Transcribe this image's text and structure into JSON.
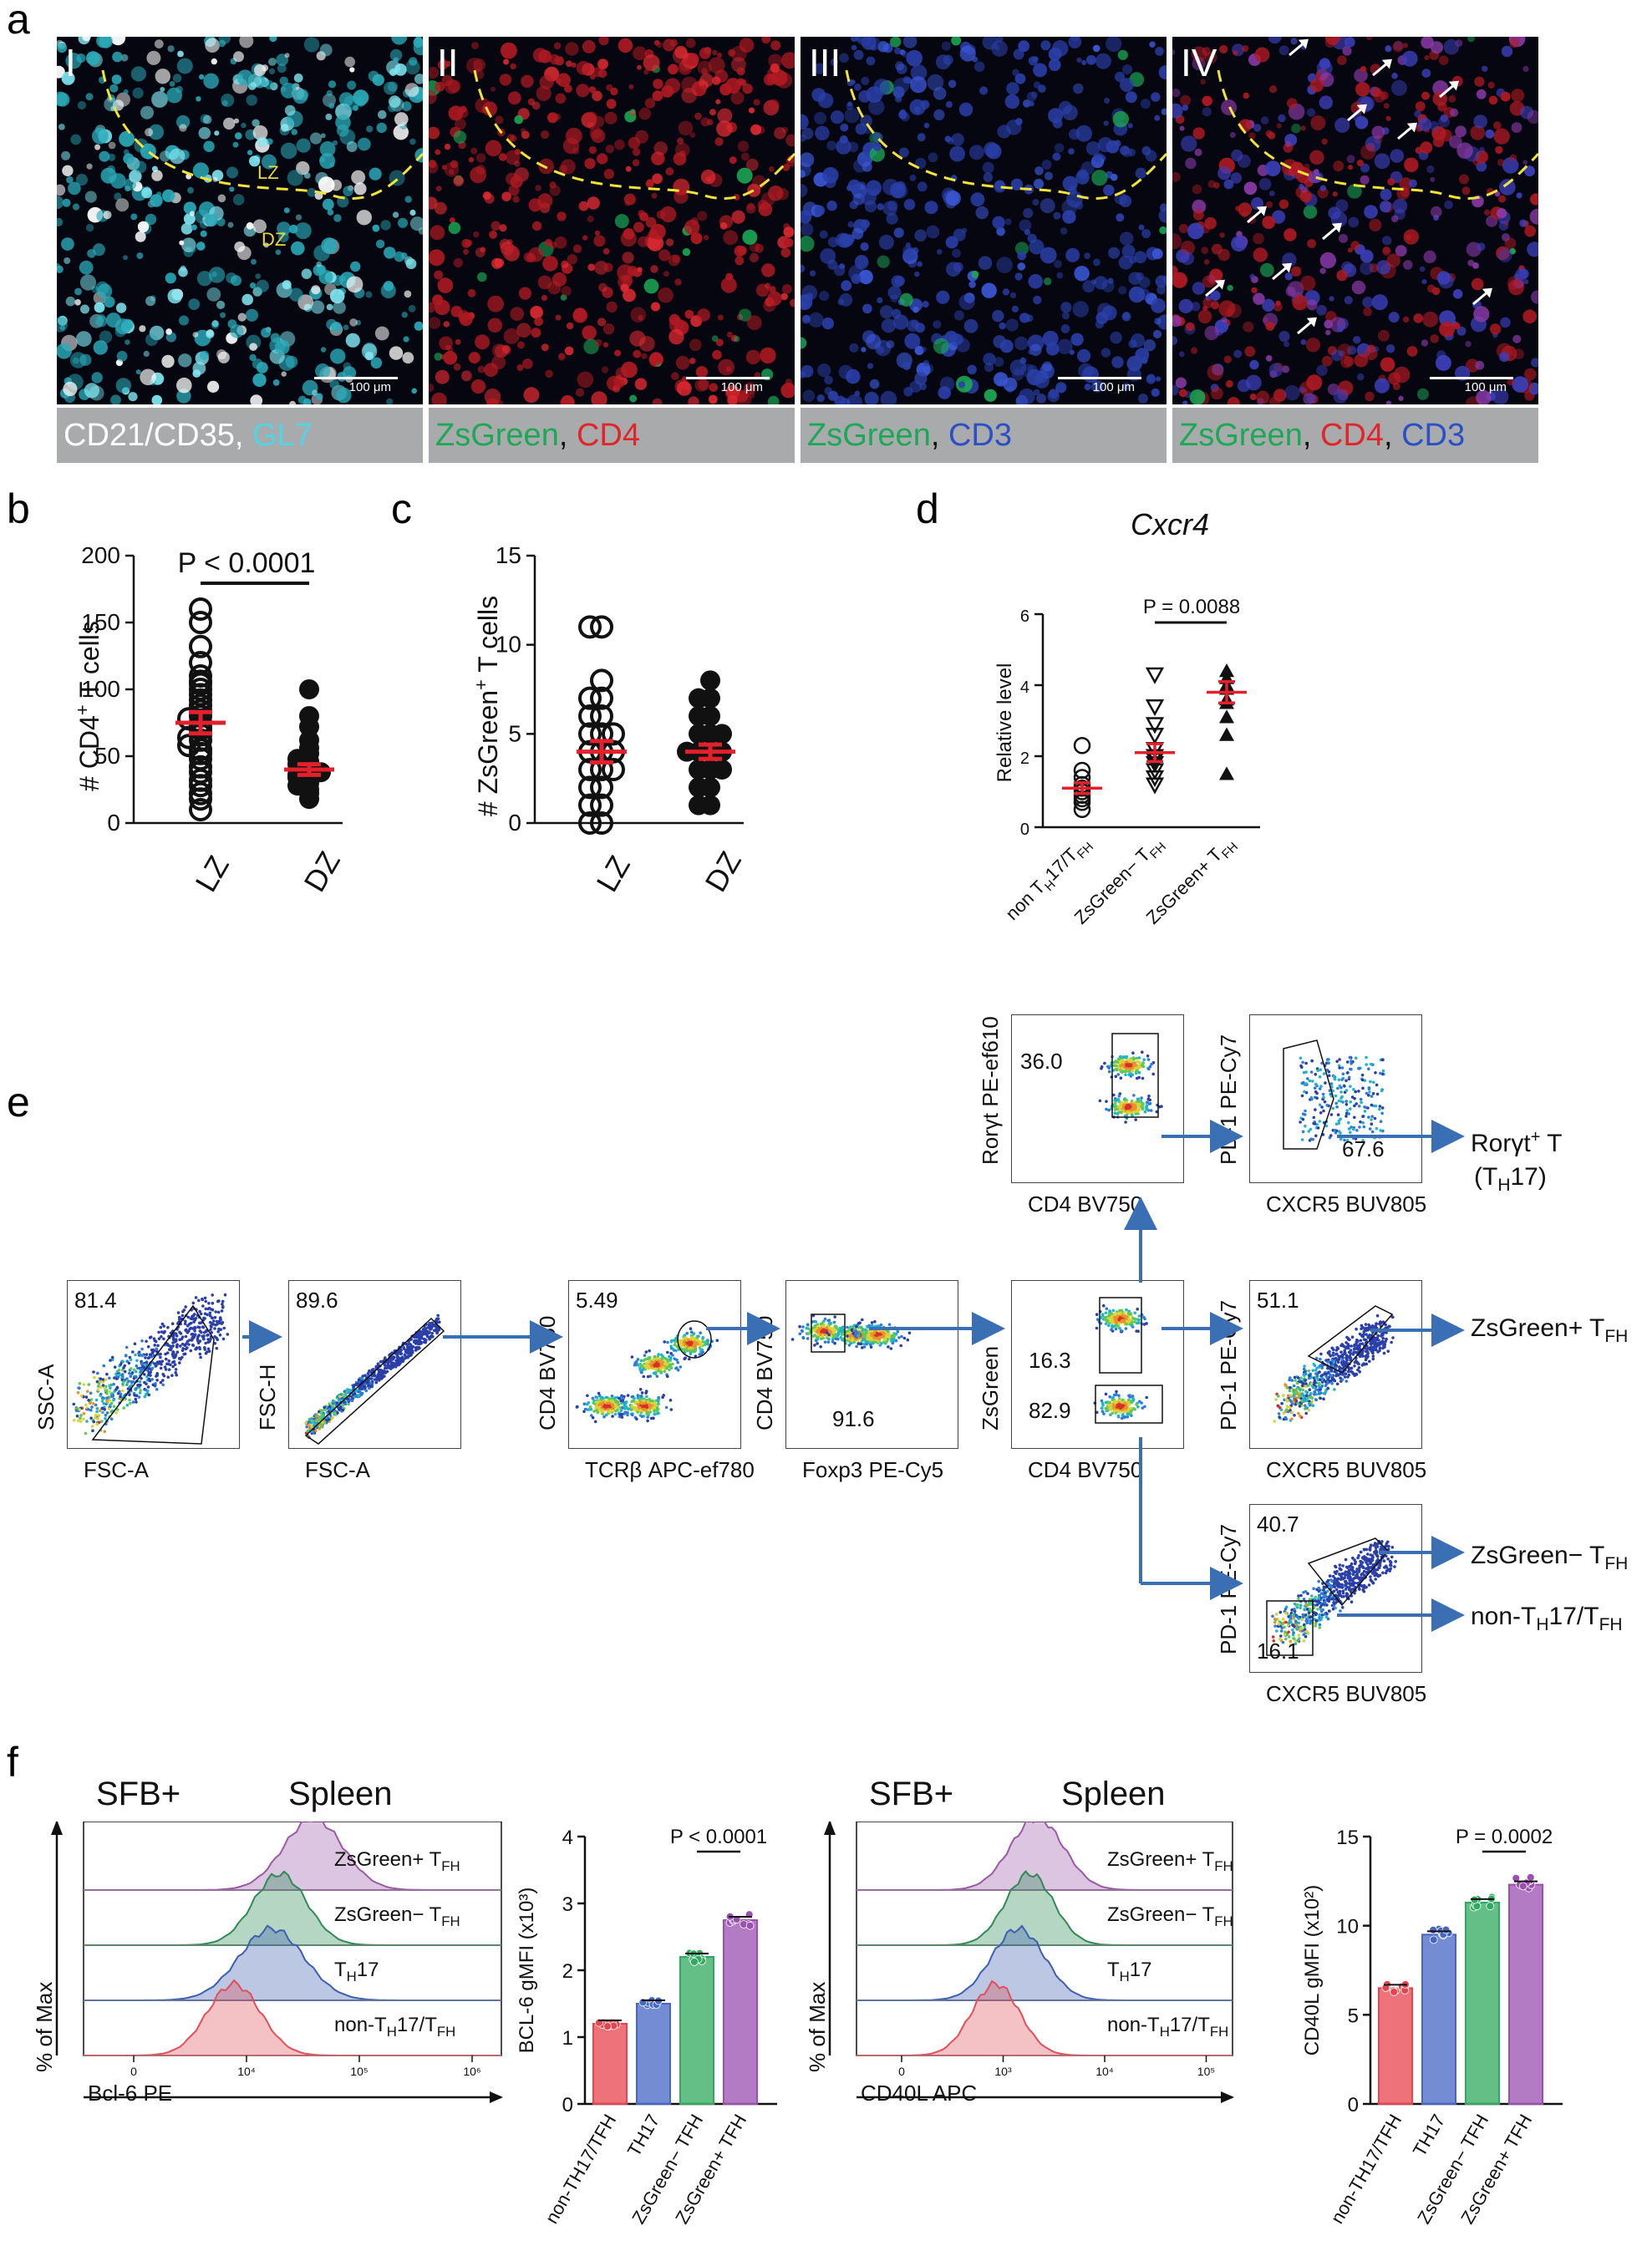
{
  "panel_a": {
    "letter": "a",
    "images": [
      {
        "numeral": "I",
        "scale": "100 μm",
        "zones": [
          "LZ",
          "DZ"
        ],
        "caption": [
          {
            "t": "CD21/CD35",
            "c": "white"
          },
          {
            "t": ", ",
            "c": "white"
          },
          {
            "t": "GL7",
            "c": "cyan"
          }
        ]
      },
      {
        "numeral": "II",
        "scale": "100 μm",
        "caption": [
          {
            "t": "ZsGreen",
            "c": "green"
          },
          {
            "t": ", ",
            "c": "black"
          },
          {
            "t": "CD4",
            "c": "red"
          }
        ]
      },
      {
        "numeral": "III",
        "scale": "100 μm",
        "caption": [
          {
            "t": "ZsGreen",
            "c": "green"
          },
          {
            "t": ", ",
            "c": "black"
          },
          {
            "t": "CD3",
            "c": "blue"
          }
        ]
      },
      {
        "numeral": "IV",
        "scale": "100 μm",
        "caption": [
          {
            "t": "ZsGreen",
            "c": "green"
          },
          {
            "t": ", ",
            "c": "black"
          },
          {
            "t": "CD4",
            "c": "red"
          },
          {
            "t": ", ",
            "c": "black"
          },
          {
            "t": "CD3",
            "c": "blue"
          }
        ]
      }
    ]
  },
  "panel_b": {
    "letter": "b",
    "ylabel_pre": "# CD4",
    "ylabel_sup": "+",
    "ylabel_post": " T cells",
    "pvalue": "P < 0.0001",
    "yticks": [
      "0",
      "50",
      "100",
      "150",
      "200"
    ],
    "xticks": [
      "LZ",
      "DZ"
    ]
  },
  "panel_c": {
    "letter": "c",
    "ylabel_pre": "# ZsGreen",
    "ylabel_sup": "+",
    "ylabel_post": " T cells",
    "yticks": [
      "0",
      "5",
      "10",
      "15"
    ],
    "xticks": [
      "LZ",
      "DZ"
    ]
  },
  "panel_d": {
    "letter": "d",
    "title": "Cxcr4",
    "ylabel": "Relative level",
    "pvalue": "P = 0.0088",
    "yticks": [
      "0",
      "2",
      "4",
      "6"
    ],
    "xticks": [
      {
        "main": "non T",
        "sub1": "H",
        "mid": "17/T",
        "sub2": "FH"
      },
      {
        "main": "ZsGreen− T",
        "sub1": "FH",
        "mid": "",
        "sub2": ""
      },
      {
        "main": "ZsGreen+ T",
        "sub1": "FH",
        "mid": "",
        "sub2": ""
      }
    ]
  },
  "panel_e": {
    "letter": "e",
    "plots": [
      {
        "id": "p1",
        "y": "SSC-A",
        "x": "FSC-A",
        "gate": "81.4"
      },
      {
        "id": "p2",
        "y": "FSC-H",
        "x": "FSC-A",
        "gate": "89.6"
      },
      {
        "id": "p3",
        "y": "CD4 BV750",
        "x": "TCRβ APC-ef780",
        "gate": "5.49"
      },
      {
        "id": "p4",
        "y": "CD4 BV750",
        "x": "Foxp3 PE-Cy5",
        "gate": "91.6"
      },
      {
        "id": "p5",
        "y": "ZsGreen",
        "x": "CD4 BV750",
        "gate": "16.3",
        "gate2": "82.9"
      },
      {
        "id": "p6",
        "y": "Rorγt PE-ef610",
        "x": "CD4 BV750",
        "gate": "36.0"
      },
      {
        "id": "p7",
        "y": "PD-1 PE-Cy7",
        "x": "CXCR5 BUV805",
        "gate": "67.6"
      },
      {
        "id": "p8",
        "y": "PD-1 PE-Cy7",
        "x": "CXCR5 BUV805",
        "gate": "51.1"
      },
      {
        "id": "p9",
        "y": "PD-1 PE-Cy7",
        "x": "CXCR5 BUV805",
        "gate": "40.7",
        "gate2": "16.1"
      }
    ],
    "outputs": {
      "roryt_line1": "Rorγt",
      "roryt_sup": "+",
      "roryt_line1_end": " T",
      "roryt_line2": "(T",
      "roryt_line2_sub": "H",
      "roryt_line2_end": "17)",
      "zsgpos": "ZsGreen+ T",
      "zsgpos_sub": "FH",
      "zsgneg": "ZsGreen− T",
      "zsgneg_sub": "FH",
      "non": "non-T",
      "non_sub1": "H",
      "non_mid": "17/T",
      "non_sub2": "FH"
    }
  },
  "panel_f": {
    "letter": "f",
    "left": {
      "label1": "SFB+",
      "label2": "Spleen",
      "ylabel": "% of Max",
      "xlabel": "Bcl-6 PE",
      "xticks": [
        "0",
        "10⁴",
        "10⁵",
        "10⁶"
      ],
      "rows": [
        {
          "main": "ZsGreen+ T",
          "sub": "FH",
          "color": "#9b59a6"
        },
        {
          "main": "ZsGreen− T",
          "sub": "FH",
          "color": "#2f8a55"
        },
        {
          "main": "T",
          "sub": "H",
          "end": "17",
          "color": "#3d5fb0"
        },
        {
          "main": "non-T",
          "sub": "H",
          "end": "17/T",
          "sub2": "FH",
          "color": "#e0505a"
        }
      ]
    },
    "right": {
      "label1": "SFB+",
      "label2": "Spleen",
      "ylabel": "% of Max",
      "xlabel": "CD40L APC",
      "xticks": [
        "0",
        "10³",
        "10⁴",
        "10⁵"
      ],
      "rows": [
        {
          "main": "ZsGreen+ T",
          "sub": "FH",
          "color": "#9b59a6"
        },
        {
          "main": "ZsGreen− T",
          "sub": "FH",
          "color": "#2f8a55"
        },
        {
          "main": "T",
          "sub": "H",
          "end": "17",
          "color": "#3d5fb0"
        },
        {
          "main": "non-T",
          "sub": "H",
          "end": "17/T",
          "sub2": "FH",
          "color": "#e0505a"
        }
      ]
    }
  },
  "chart_data": [
    {
      "id": "b",
      "type": "scatter",
      "ylabel": "# CD4+ T cells",
      "categories": [
        "LZ",
        "DZ"
      ],
      "ylim": [
        0,
        200
      ],
      "points": [
        [
          10,
          18,
          22,
          28,
          32,
          38,
          42,
          48,
          52,
          55,
          58,
          62,
          64,
          66,
          70,
          72,
          75,
          78,
          80,
          84,
          88,
          92,
          96,
          100,
          104,
          106,
          110,
          120,
          132,
          150,
          160
        ],
        [
          18,
          22,
          25,
          28,
          30,
          32,
          34,
          35,
          36,
          38,
          40,
          42,
          44,
          46,
          48,
          52,
          56,
          62,
          72,
          80,
          100
        ]
      ],
      "mean": [
        75,
        40
      ],
      "sem": [
        8,
        4
      ],
      "pvalue": "P < 0.0001"
    },
    {
      "id": "c",
      "type": "scatter",
      "ylabel": "# ZsGreen+ T cells",
      "categories": [
        "LZ",
        "DZ"
      ],
      "ylim": [
        0,
        15
      ],
      "points": [
        [
          0,
          0,
          1,
          1,
          2,
          2,
          3,
          3,
          3,
          4,
          4,
          4,
          5,
          5,
          5,
          6,
          6,
          7,
          7,
          8,
          11,
          11
        ],
        [
          1,
          1,
          2,
          2,
          3,
          3,
          3,
          4,
          4,
          4,
          4,
          5,
          5,
          5,
          6,
          6,
          7,
          7,
          8
        ]
      ],
      "mean": [
        4,
        4
      ],
      "sem": [
        0.6,
        0.4
      ]
    },
    {
      "id": "d",
      "type": "scatter",
      "title": "Cxcr4",
      "ylabel": "Relative level",
      "categories": [
        "non TH17/TFH",
        "ZsGreen− TFH",
        "ZsGreen+ TFH"
      ],
      "ylim": [
        0,
        6
      ],
      "points": [
        [
          0.5,
          0.7,
          0.8,
          0.9,
          1.0,
          1.1,
          1.2,
          1.4,
          1.6,
          2.3
        ],
        [
          1.2,
          1.4,
          1.6,
          1.8,
          1.9,
          2.0,
          2.2,
          2.6,
          2.9,
          3.4,
          4.3
        ],
        [
          1.5,
          2.6,
          3.1,
          3.5,
          3.6,
          3.9,
          4.0,
          4.2,
          4.4
        ]
      ],
      "mean": [
        1.1,
        2.1,
        3.8
      ],
      "sem": [
        0.15,
        0.25,
        0.3
      ],
      "pvalue": "P = 0.0088"
    },
    {
      "id": "f-left",
      "type": "bar",
      "ylabel": "BCL-6 gMFI (x10³)",
      "categories": [
        "non-TH17/TFH",
        "TH17",
        "ZsGreen− TFH",
        "ZsGreen+ TFH"
      ],
      "values": [
        1.2,
        1.5,
        2.2,
        2.75
      ],
      "colors": [
        "#e8434d",
        "#4566c4",
        "#2faa5e",
        "#9b4fb2"
      ],
      "ylim": [
        0,
        4
      ],
      "yticks": [
        "0",
        "1",
        "2",
        "3",
        "4"
      ],
      "pvalue": "P < 0.0001"
    },
    {
      "id": "f-right",
      "type": "bar",
      "ylabel": "CD40L gMFI (x10²)",
      "categories": [
        "non-TH17/TFH",
        "TH17",
        "ZsGreen− TFH",
        "ZsGreen+ TFH"
      ],
      "values": [
        6.5,
        9.5,
        11.3,
        12.3
      ],
      "colors": [
        "#e8434d",
        "#4566c4",
        "#2faa5e",
        "#9b4fb2"
      ],
      "ylim": [
        0,
        15
      ],
      "yticks": [
        "0",
        "5",
        "10",
        "15"
      ],
      "pvalue": "P = 0.0002"
    }
  ]
}
